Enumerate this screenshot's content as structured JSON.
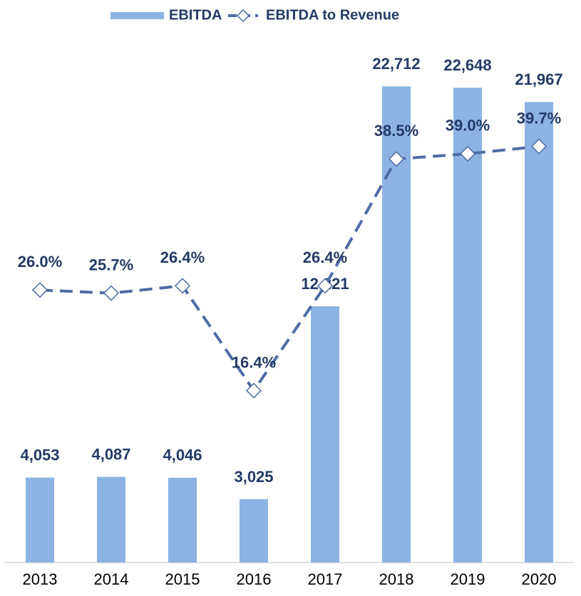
{
  "chart_data": {
    "type": "bar_line",
    "categories": [
      "2013",
      "2014",
      "2015",
      "2016",
      "2017",
      "2018",
      "2019",
      "2020"
    ],
    "series": [
      {
        "name": "EBITDA",
        "type": "bar",
        "color": "#8db3e2",
        "values": [
          4053,
          4087,
          4046,
          3025,
          12221,
          22712,
          22648,
          21967
        ],
        "value_labels": [
          "4,053",
          "4,087",
          "4,046",
          "3,025",
          "12,221",
          "22,712",
          "22,648",
          "21,967"
        ]
      },
      {
        "name": "EBITDA to Revenue",
        "type": "line",
        "axis": "y2",
        "color": "#4f6ca4",
        "values": [
          26.0,
          25.7,
          26.4,
          16.4,
          26.4,
          38.5,
          39.0,
          39.7
        ],
        "value_labels": [
          "26.0%",
          "25.7%",
          "26.4%",
          "16.4%",
          "26.4%",
          "38.5%",
          "39.0%",
          "39.7%"
        ]
      }
    ],
    "ylim": [
      0,
      25000
    ],
    "y2lim": [
      0,
      50
    ],
    "legend": "top"
  }
}
